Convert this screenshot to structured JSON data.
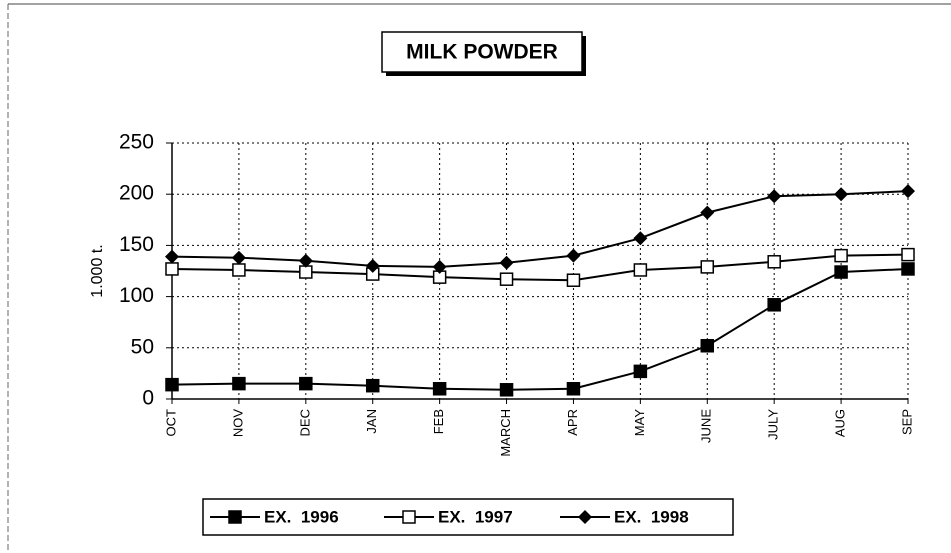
{
  "chart_data": {
    "type": "line",
    "title": "MILK POWDER",
    "y_label": "1.000 t.",
    "categories": [
      "OCT",
      "NOV",
      "DEC",
      "JAN",
      "FEB",
      "MARCH",
      "APR",
      "MAY",
      "JUNE",
      "JULY",
      "AUG",
      "SEP"
    ],
    "series": [
      {
        "name": "EX.  1996",
        "color": "#000000",
        "marker": "square-filled",
        "values": [
          14,
          15,
          15,
          13,
          10,
          9,
          10,
          27,
          52,
          92,
          124,
          127
        ]
      },
      {
        "name": "EX.  1997",
        "color": "#000000",
        "marker": "square-open",
        "values": [
          127,
          126,
          124,
          122,
          119,
          117,
          116,
          126,
          129,
          134,
          140,
          141
        ]
      },
      {
        "name": "EX.  1998",
        "color": "#000000",
        "marker": "diamond-filled",
        "values": [
          139,
          138,
          135,
          130,
          129,
          133,
          140,
          157,
          182,
          198,
          200,
          203
        ]
      }
    ],
    "ylim": [
      0,
      250
    ],
    "yticks": [
      0,
      50,
      100,
      150,
      200,
      250
    ],
    "grid": true,
    "legend": "bottom"
  }
}
